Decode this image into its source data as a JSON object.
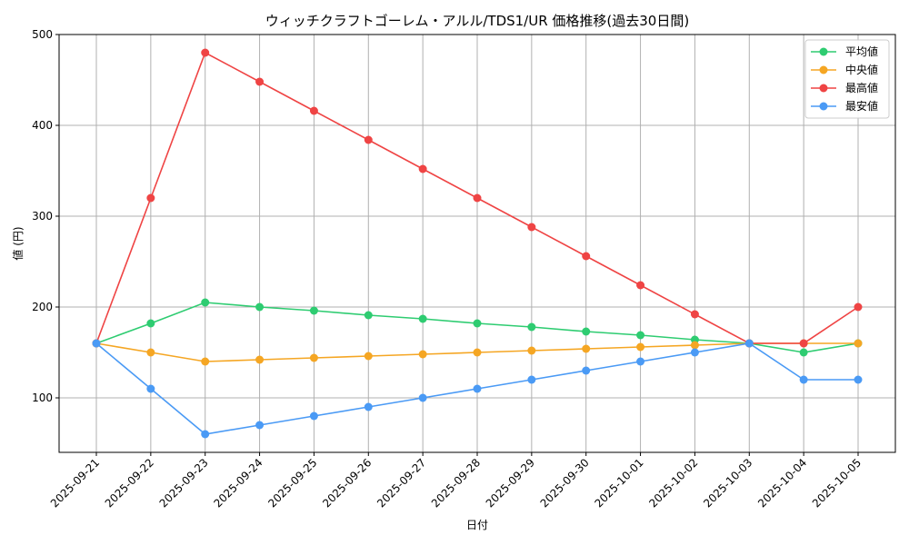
{
  "chart_data": {
    "type": "line",
    "title": "ウィッチクラフトゴーレム・アルル/TDS1/UR 価格推移(過去30日間)",
    "xlabel": "日付",
    "ylabel": "値 (円)",
    "ylim": [
      40,
      500
    ],
    "yticks": [
      100,
      200,
      300,
      400,
      500
    ],
    "grid": true,
    "legend_position": "top-right",
    "categories": [
      "2025-09-21",
      "2025-09-22",
      "2025-09-23",
      "2025-09-24",
      "2025-09-25",
      "2025-09-26",
      "2025-09-27",
      "2025-09-28",
      "2025-09-29",
      "2025-09-30",
      "2025-10-01",
      "2025-10-02",
      "2025-10-03",
      "2025-10-04",
      "2025-10-05"
    ],
    "series": [
      {
        "name": "平均値",
        "color": "#2ecc71",
        "values": [
          160,
          182,
          205,
          200,
          196,
          191,
          187,
          182,
          178,
          173,
          169,
          164,
          160,
          150,
          160
        ]
      },
      {
        "name": "中央値",
        "color": "#f5a623",
        "values": [
          160,
          150,
          140,
          142,
          144,
          146,
          148,
          150,
          152,
          154,
          156,
          158,
          160,
          160,
          160
        ]
      },
      {
        "name": "最高値",
        "color": "#ef4444",
        "values": [
          160,
          320,
          480,
          448,
          416,
          384,
          352,
          320,
          288,
          256,
          224,
          192,
          160,
          160,
          200
        ]
      },
      {
        "name": "最安値",
        "color": "#4a9af5",
        "values": [
          160,
          110,
          60,
          70,
          80,
          90,
          100,
          110,
          120,
          130,
          140,
          150,
          160,
          120,
          120
        ]
      }
    ]
  }
}
